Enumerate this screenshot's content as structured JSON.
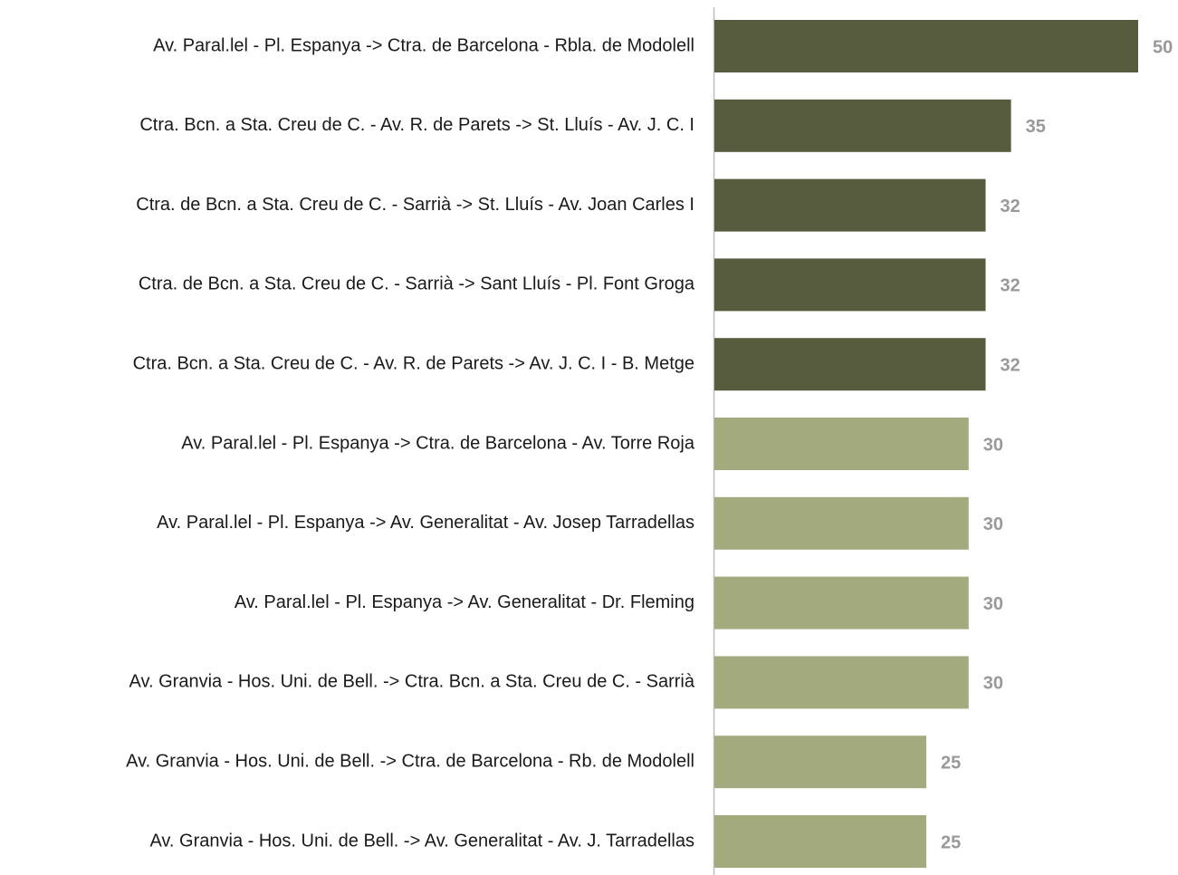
{
  "chart_data": {
    "type": "bar",
    "orientation": "horizontal",
    "categories": [
      "Av. Paral.lel - Pl. Espanya -> Ctra. de Barcelona - Rbla. de Modolell",
      "Ctra. Bcn. a Sta. Creu de C. - Av. R. de Parets -> St. Lluís - Av. J. C. I",
      "Ctra. de Bcn. a Sta. Creu de C. - Sarrià -> St. Lluís - Av. Joan Carles I",
      "Ctra. de Bcn. a Sta. Creu de C. - Sarrià -> Sant Lluís - Pl. Font Groga",
      "Ctra. Bcn. a Sta. Creu de C. - Av. R. de Parets -> Av. J. C. I - B. Metge",
      "Av. Paral.lel - Pl. Espanya -> Ctra. de Barcelona - Av. Torre Roja",
      "Av. Paral.lel - Pl. Espanya -> Av. Generalitat - Av. Josep Tarradellas",
      "Av. Paral.lel - Pl. Espanya -> Av. Generalitat - Dr. Fleming",
      "Av. Granvia - Hos. Uni. de Bell. -> Ctra. Bcn. a Sta. Creu de C. - Sarrià",
      "Av. Granvia - Hos. Uni. de Bell. -> Ctra. de Barcelona - Rb. de Modolell",
      "Av. Granvia - Hos. Uni. de Bell. -> Av. Generalitat - Av. J. Tarradellas"
    ],
    "values": [
      50,
      35,
      32,
      32,
      32,
      30,
      30,
      30,
      30,
      25,
      25
    ],
    "colors": [
      "#565c3d",
      "#565c3d",
      "#565c3d",
      "#565c3d",
      "#565c3d",
      "#a3ab7e",
      "#a3ab7e",
      "#a3ab7e",
      "#a3ab7e",
      "#a3ab7e",
      "#a3ab7e"
    ],
    "xlim": [
      0,
      50
    ]
  }
}
